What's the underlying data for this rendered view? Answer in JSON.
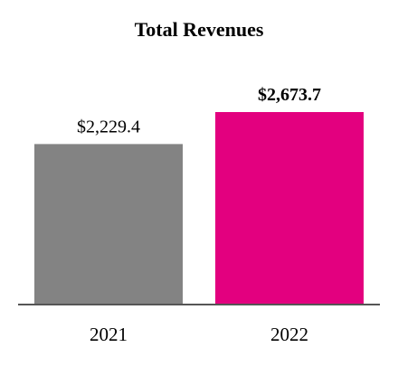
{
  "chart_data": {
    "type": "bar",
    "title": "Total Revenues",
    "categories": [
      "2021",
      "2022"
    ],
    "values": [
      2229.4,
      2673.7
    ],
    "value_labels": [
      "$2,229.4",
      "$2,673.7"
    ],
    "value_label_bold": [
      false,
      true
    ],
    "bar_colors": [
      "#838383",
      "#e3007f"
    ],
    "axis_color": "#555555",
    "xlabel": "",
    "ylabel": "",
    "ylim": [
      0,
      3000
    ],
    "grid": false,
    "legend": "none"
  }
}
